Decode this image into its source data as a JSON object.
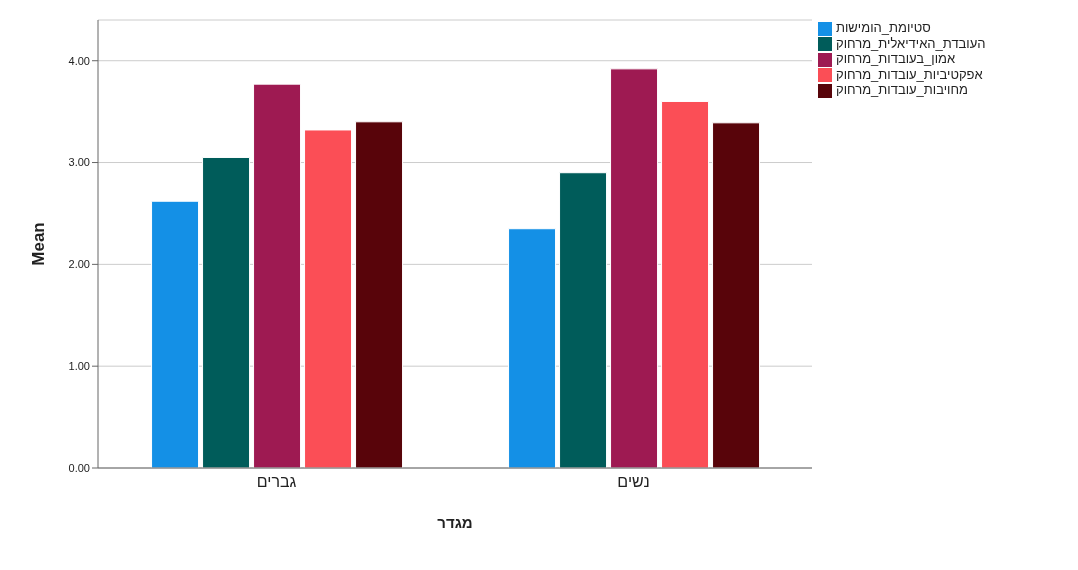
{
  "chart_data": {
    "type": "bar",
    "xlabel": "מגדר",
    "ylabel": "Mean",
    "categories": [
      "גברים",
      "נשים"
    ],
    "series": [
      {
        "name": "סטיומת_הומישות",
        "color": "#1490e6",
        "values": [
          2.62,
          2.35
        ]
      },
      {
        "name": "העובדת_האידיאלית_מרחוק",
        "color": "#005c5a",
        "values": [
          3.05,
          2.9
        ]
      },
      {
        "name": "אמון_בעובדות_מרחוק",
        "color": "#9e1a52",
        "values": [
          3.77,
          3.92
        ]
      },
      {
        "name": "אפקטיביות_עובדות_מרחוק",
        "color": "#fb4e56",
        "values": [
          3.32,
          3.6
        ]
      },
      {
        "name": "מחויבות_עובדות_מרחוק",
        "color": "#58040a",
        "values": [
          3.4,
          3.39
        ]
      }
    ],
    "ylim": [
      0,
      4.4
    ],
    "yticks": [
      {
        "value": 0,
        "label": "0.00"
      },
      {
        "value": 1,
        "label": "1.00"
      },
      {
        "value": 2,
        "label": "2.00"
      },
      {
        "value": 3,
        "label": "3.00"
      },
      {
        "value": 4,
        "label": "4.00"
      }
    ],
    "grid": "y",
    "legend": "top right"
  }
}
